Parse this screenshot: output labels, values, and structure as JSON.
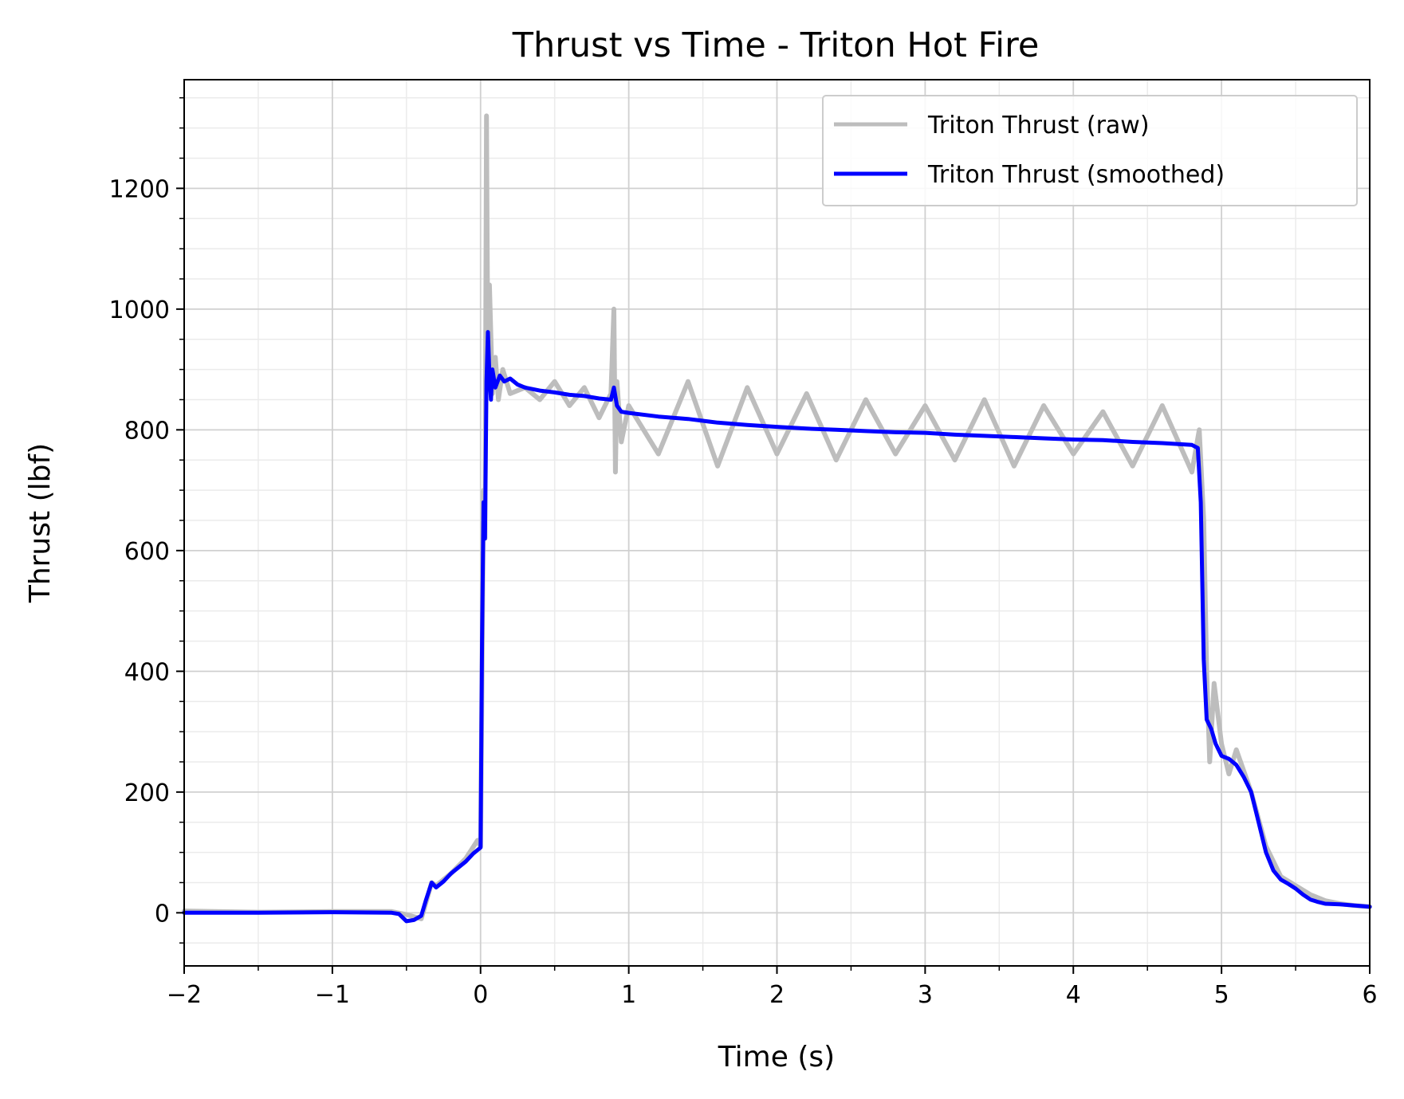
{
  "chart_data": {
    "type": "line",
    "title": "Thrust vs Time - Triton Hot Fire",
    "xlabel": "Time (s)",
    "ylabel": "Thrust (lbf)",
    "xlim": [
      -2,
      6
    ],
    "ylim": [
      -88,
      1380
    ],
    "x_ticks": [
      -2,
      -1,
      0,
      1,
      2,
      3,
      4,
      5,
      6
    ],
    "x_tick_labels": [
      "−2",
      "−1",
      "0",
      "1",
      "2",
      "3",
      "4",
      "5",
      "6"
    ],
    "y_ticks": [
      0,
      200,
      400,
      600,
      800,
      1000,
      1200
    ],
    "y_tick_labels": [
      "0",
      "200",
      "400",
      "600",
      "800",
      "1000",
      "1200"
    ],
    "x_minor_step": 0.5,
    "y_minor_step": 50,
    "grid": true,
    "legend_position": "top-right",
    "series": [
      {
        "name": "Triton Thrust (raw)",
        "color": "#bdbdbd",
        "x": [
          -2.0,
          -1.5,
          -1.0,
          -0.6,
          -0.5,
          -0.4,
          -0.33,
          -0.3,
          -0.2,
          -0.1,
          -0.02,
          0.0,
          0.02,
          0.03,
          0.04,
          0.05,
          0.06,
          0.07,
          0.08,
          0.1,
          0.12,
          0.15,
          0.2,
          0.3,
          0.4,
          0.5,
          0.6,
          0.7,
          0.8,
          0.88,
          0.9,
          0.91,
          0.92,
          0.95,
          1.0,
          1.2,
          1.4,
          1.6,
          1.8,
          2.0,
          2.2,
          2.4,
          2.6,
          2.8,
          3.0,
          3.2,
          3.4,
          3.6,
          3.8,
          4.0,
          4.2,
          4.4,
          4.6,
          4.8,
          4.85,
          4.88,
          4.9,
          4.92,
          4.95,
          5.0,
          5.05,
          5.1,
          5.2,
          5.3,
          5.4,
          5.5,
          5.6,
          5.7,
          5.8,
          5.9,
          6.0
        ],
        "y": [
          3,
          1,
          2,
          2,
          -3,
          -10,
          50,
          45,
          65,
          90,
          120,
          110,
          700,
          620,
          1320,
          880,
          1040,
          950,
          860,
          920,
          850,
          900,
          860,
          870,
          850,
          880,
          840,
          870,
          820,
          860,
          1000,
          730,
          880,
          780,
          840,
          760,
          880,
          740,
          870,
          760,
          860,
          750,
          850,
          760,
          840,
          750,
          850,
          740,
          840,
          760,
          830,
          740,
          840,
          730,
          800,
          650,
          400,
          250,
          380,
          280,
          230,
          270,
          200,
          110,
          60,
          45,
          30,
          20,
          15,
          12,
          10
        ]
      },
      {
        "name": "Triton Thrust (smoothed)",
        "color": "#0000ff",
        "x": [
          -2.0,
          -1.5,
          -1.0,
          -0.6,
          -0.55,
          -0.5,
          -0.45,
          -0.4,
          -0.37,
          -0.33,
          -0.3,
          -0.25,
          -0.2,
          -0.1,
          -0.05,
          0.0,
          0.01,
          0.02,
          0.03,
          0.04,
          0.05,
          0.06,
          0.07,
          0.08,
          0.1,
          0.13,
          0.16,
          0.2,
          0.25,
          0.3,
          0.4,
          0.5,
          0.6,
          0.7,
          0.8,
          0.88,
          0.9,
          0.92,
          0.95,
          1.0,
          1.2,
          1.4,
          1.6,
          1.8,
          2.0,
          2.2,
          2.4,
          2.6,
          2.8,
          3.0,
          3.2,
          3.4,
          3.6,
          3.8,
          4.0,
          4.2,
          4.4,
          4.6,
          4.8,
          4.84,
          4.86,
          4.88,
          4.9,
          4.93,
          4.96,
          5.0,
          5.05,
          5.1,
          5.15,
          5.2,
          5.25,
          5.3,
          5.35,
          5.4,
          5.45,
          5.5,
          5.55,
          5.6,
          5.65,
          5.7,
          5.8,
          5.9,
          6.0
        ],
        "y": [
          0,
          0,
          1,
          0,
          -2,
          -14,
          -12,
          -5,
          20,
          50,
          42,
          52,
          65,
          85,
          98,
          108,
          450,
          680,
          620,
          880,
          962,
          890,
          850,
          900,
          870,
          890,
          880,
          885,
          875,
          870,
          865,
          862,
          858,
          856,
          852,
          850,
          870,
          840,
          830,
          828,
          822,
          818,
          812,
          808,
          805,
          802,
          800,
          798,
          796,
          795,
          792,
          790,
          788,
          786,
          784,
          783,
          780,
          778,
          775,
          770,
          680,
          420,
          320,
          305,
          280,
          260,
          255,
          245,
          225,
          200,
          150,
          100,
          70,
          55,
          48,
          40,
          30,
          22,
          18,
          15,
          14,
          12,
          10
        ]
      }
    ]
  }
}
